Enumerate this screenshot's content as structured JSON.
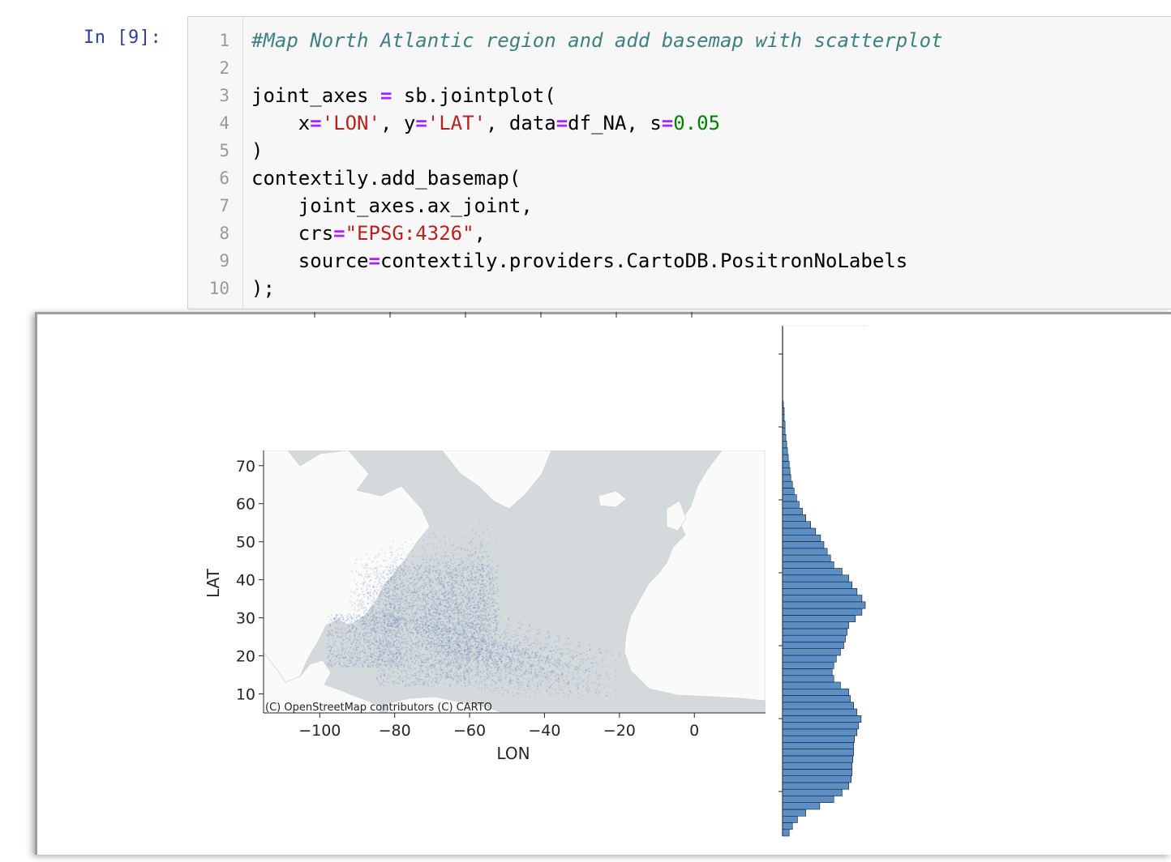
{
  "cell": {
    "prompt": "In [9]:",
    "line_numbers": [
      "1",
      "2",
      "3",
      "4",
      "5",
      "6",
      "7",
      "8",
      "9",
      "10"
    ],
    "code": {
      "l1": "#Map North Atlantic region and add basemap with scatterplot",
      "l3_a": "joint_axes ",
      "l3_op": "=",
      "l3_b": " sb.jointplot(",
      "l4_indent": "    ",
      "l4_x": "x",
      "l4_eq1": "=",
      "l4_lon": "'LON'",
      "l4_sep1": ", ",
      "l4_y": "y",
      "l4_eq2": "=",
      "l4_lat": "'LAT'",
      "l4_sep2": ", ",
      "l4_data": "data",
      "l4_eq3": "=",
      "l4_df": "df_NA",
      "l4_sep3": ", ",
      "l4_s": "s",
      "l4_eq4": "=",
      "l4_sval": "0.05",
      "l5": ")",
      "l6": "contextily.add_basemap(",
      "l7": "    joint_axes.ax_joint,",
      "l8_a": "    crs",
      "l8_op": "=",
      "l8_str": "\"EPSG:4326\"",
      "l8_b": ",",
      "l9_a": "    source",
      "l9_op": "=",
      "l9_b": "contextily.providers.CartoDB.PositronNoLabels",
      "l10": ");"
    }
  },
  "output": {
    "attribution": "(C) OpenStreetMap contributors (C) CARTO",
    "colors": {
      "ocean": "#d4dadc",
      "land": "#fafaf8",
      "points": "#4c72b0",
      "bars": "#5b8fc6",
      "bar_edge": "#1a1a1a",
      "axis": "#262626"
    },
    "chart_data": [
      {
        "type": "scatter",
        "title": "",
        "xlabel": "LON",
        "ylabel": "LAT",
        "xlim": [
          -115,
          19
        ],
        "ylim": [
          5,
          74
        ],
        "xticks": [
          -100,
          -80,
          -60,
          -40,
          -20,
          0
        ],
        "xtick_labels": [
          "−100",
          "−80",
          "−60",
          "−40",
          "−20",
          "0"
        ],
        "yticks": [
          10,
          20,
          30,
          40,
          50,
          60,
          70
        ],
        "ytick_labels": [
          "10",
          "20",
          "30",
          "40",
          "50",
          "60",
          "70"
        ],
        "grid": false,
        "legend": "none",
        "basemap": "CartoDB.PositronNoLabels",
        "crs": "EPSG:4326",
        "point_size": 0.05
      },
      {
        "type": "bar",
        "orientation": "horizontal",
        "title": "",
        "xlabel": "",
        "ylabel": "",
        "bin_width": 1.6,
        "bin_start": 5.6,
        "relative_counts": [
          0.08,
          0.12,
          0.18,
          0.28,
          0.45,
          0.62,
          0.72,
          0.8,
          0.83,
          0.84,
          0.84,
          0.85,
          0.86,
          0.86,
          0.87,
          0.9,
          0.92,
          0.95,
          0.9,
          0.86,
          0.82,
          0.8,
          0.7,
          0.62,
          0.6,
          0.62,
          0.65,
          0.7,
          0.74,
          0.76,
          0.78,
          0.8,
          0.88,
          0.96,
          1.0,
          0.96,
          0.9,
          0.84,
          0.8,
          0.72,
          0.62,
          0.58,
          0.54,
          0.5,
          0.46,
          0.4,
          0.34,
          0.28,
          0.24,
          0.2,
          0.17,
          0.14,
          0.12,
          0.1,
          0.09,
          0.08,
          0.07,
          0.06,
          0.05,
          0.04,
          0.03,
          0.03,
          0.02,
          0.02,
          0.01
        ]
      }
    ]
  }
}
